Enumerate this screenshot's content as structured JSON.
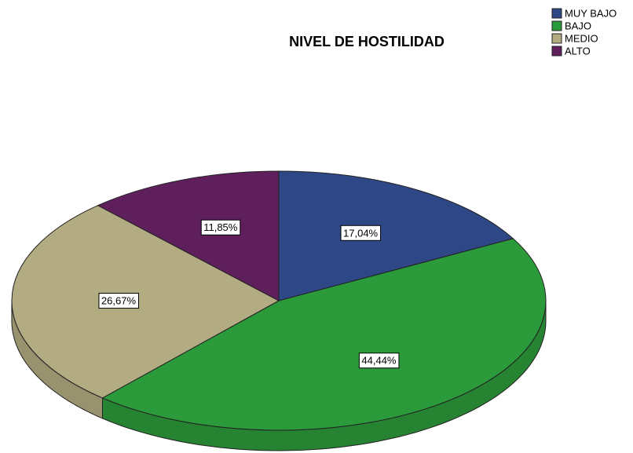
{
  "chart_data": {
    "type": "pie",
    "title": "NIVEL DE HOSTILIDAD",
    "categories": [
      "MUY BAJO",
      "BAJO",
      "MEDIO",
      "ALTO"
    ],
    "values": [
      17.04,
      44.44,
      26.67,
      11.85
    ],
    "value_labels": [
      "17,04%",
      "44,44%",
      "26,67%",
      "11,85%"
    ],
    "colors": [
      "#2e4787",
      "#2b9a3b",
      "#b3ac83",
      "#5f1f5d"
    ],
    "legend": "top-right"
  }
}
